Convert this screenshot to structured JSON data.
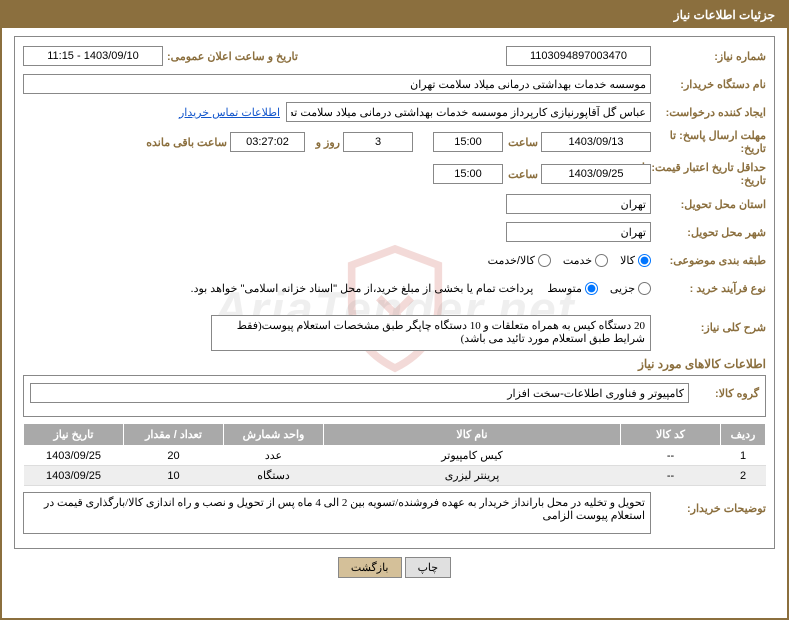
{
  "header": {
    "title": "جزئیات اطلاعات نیاز"
  },
  "fields": {
    "need_no_label": "شماره نیاز:",
    "need_no": "1103094897003470",
    "announce_label": "تاریخ و ساعت اعلان عمومی:",
    "announce_value": "1403/09/10 - 11:15",
    "buyer_label": "نام دستگاه خریدار:",
    "buyer_name": "موسسه خدمات بهداشتی درمانی میلاد سلامت تهران",
    "requester_label": "ایجاد کننده درخواست:",
    "requester_name": "عباس گل آقاپورنیازی کارپرداز موسسه خدمات بهداشتی درمانی میلاد سلامت ته",
    "contact_link": "اطلاعات تماس خریدار",
    "deadline_reply_label": "مهلت ارسال پاسخ: تا تاریخ:",
    "deadline_date": "1403/09/13",
    "hour_label": "ساعت",
    "deadline_hour": "15:00",
    "days_count": "3",
    "days_label": "روز و",
    "time_left": "03:27:02",
    "remain_label": "ساعت باقی مانده",
    "validity_label": "حداقل تاریخ اعتبار قیمت: تا تاریخ:",
    "validity_date": "1403/09/25",
    "validity_hour": "15:00",
    "province_label": "استان محل تحویل:",
    "province": "تهران",
    "city_label": "شهر محل تحویل:",
    "city": "تهران",
    "category_label": "طبقه بندی موضوعی:",
    "purchase_type_label": "نوع فرآیند خرید :",
    "purchase_note": "پرداخت تمام یا بخشی از مبلغ خرید،از محل \"اسناد خزانه اسلامی\" خواهد بود."
  },
  "radios": {
    "kala": "کالا",
    "khedmat": "خدمت",
    "kala_khedmat": "کالا/خدمت",
    "jozei": "جزیی",
    "motavaset": "متوسط"
  },
  "desc": {
    "label": "شرح کلی نیاز:",
    "value": "20 دستگاه کیس به همراه متعلقات و 10 دستگاه چاپگر طبق مشخصات استعلام پیوست(فقط شرایط طبق استعلام مورد تائید می باشد)"
  },
  "items_section": {
    "title": "اطلاعات کالاهای مورد نیاز",
    "group_label": "گروه کالا:",
    "group_value": "کامپیوتر و فناوری اطلاعات-سخت افزار"
  },
  "table": {
    "headers": {
      "row": "ردیف",
      "code": "کد کالا",
      "name": "نام کالا",
      "unit": "واحد شمارش",
      "qty": "تعداد / مقدار",
      "date": "تاریخ نیاز"
    },
    "rows": [
      {
        "idx": "1",
        "code": "--",
        "name": "کیس کامپیوتر",
        "unit": "عدد",
        "qty": "20",
        "date": "1403/09/25"
      },
      {
        "idx": "2",
        "code": "--",
        "name": "پرینتر لیزری",
        "unit": "دستگاه",
        "qty": "10",
        "date": "1403/09/25"
      }
    ]
  },
  "buyer_notes": {
    "label": "توضیحات خریدار:",
    "value": "تحویل و تخلیه در محل بارانداز خریدار به عهده فروشنده/تسویه بین 2 الی 4 ماه پس از تحویل و نصب و راه اندازی کالا/بارگذاری قیمت در استعلام پیوست الزامی"
  },
  "buttons": {
    "print": "چاپ",
    "back": "بازگشت"
  },
  "watermark": "AriaTender.net"
}
